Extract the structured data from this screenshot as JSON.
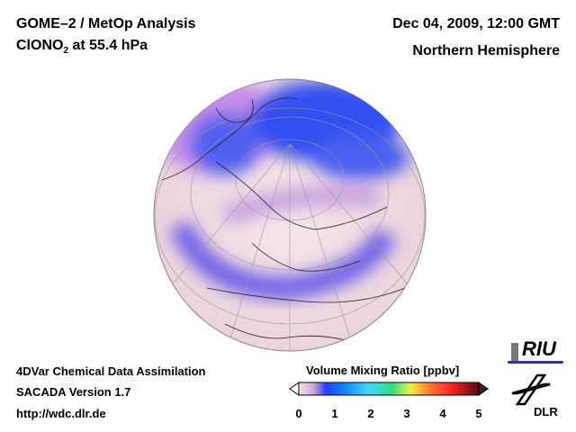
{
  "header": {
    "title": "GOME–2 / MetOp Analysis",
    "species": "ClONO",
    "species_sub": "2",
    "level": " at 55.4 hPa",
    "date": "Dec 04, 2009, 12:00 GMT",
    "region": "Northern Hemisphere"
  },
  "footer": {
    "line1": "4DVar Chemical Data Assimilation",
    "line2": "SACADA Version 1.7",
    "line3": "http://wdc.dlr.de"
  },
  "colorbar": {
    "title": "Volume Mixing Ratio [ppbv]",
    "ticks": [
      "0",
      "1",
      "2",
      "3",
      "4",
      "5"
    ],
    "min": 0,
    "max": 5,
    "colors": [
      "#f2e4ec",
      "#d8a8d8",
      "#2040ff",
      "#1080ff",
      "#40d8ff",
      "#30e080",
      "#f0f040",
      "#ff8030",
      "#ff2020",
      "#501010"
    ]
  },
  "logos": {
    "riu": "RIU",
    "dlr": "DLR"
  }
}
